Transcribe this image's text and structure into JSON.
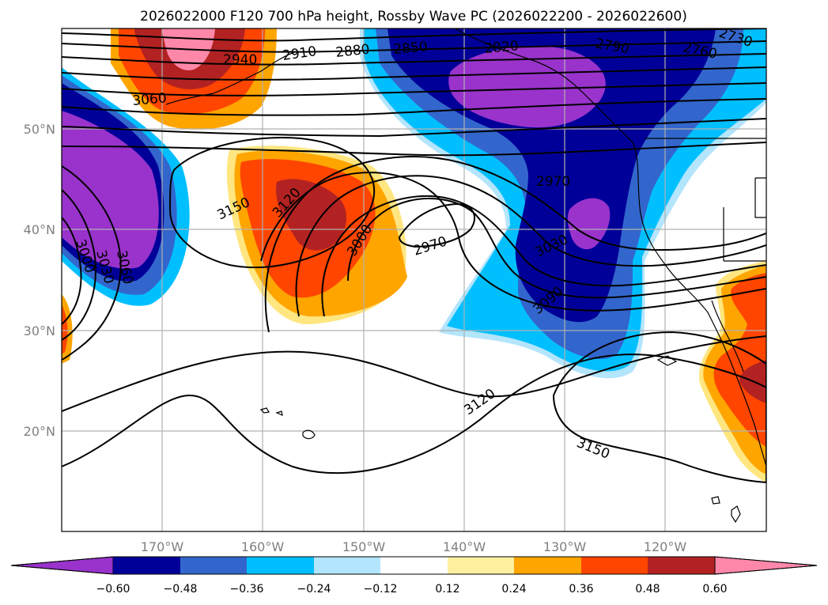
{
  "title": "2026022000 F120 700 hPa height, Rossby Wave PC (2026022200 - 2026022600)",
  "axes": {
    "lat_ticks": [
      "50°N",
      "40°N",
      "30°N",
      "20°N"
    ],
    "lon_ticks": [
      "170°W",
      "160°W",
      "150°W",
      "140°W",
      "130°W",
      "120°W"
    ]
  },
  "colorbar": {
    "colors": [
      "#9933cc",
      "#000099",
      "#3366cc",
      "#00bfff",
      "#b3e5fc",
      "#ffffff",
      "#fff0a0",
      "#ffa500",
      "#ff4500",
      "#b22222",
      "#ff88aa"
    ],
    "ticks": [
      "−0.60",
      "−0.48",
      "−0.36",
      "−0.24",
      "−0.12",
      "0.12",
      "0.24",
      "0.36",
      "0.48",
      "0.60"
    ]
  },
  "contour_labels": [
    "3060",
    "2940",
    "2910",
    "2880",
    "2850",
    "2820",
    "2790",
    "2760",
    "2730",
    "3150",
    "3120",
    "3000",
    "2970",
    "2970",
    "3030",
    "3090",
    "3000",
    "3030",
    "3060",
    "3120",
    "3150"
  ],
  "chart_data": {
    "type": "map",
    "title": "2026022000 F120 700 hPa height, Rossby Wave PC (2026022200 - 2026022600)",
    "field": "700 hPa geopotential height (contours, m) with Rossby Wave PC (shaded)",
    "extent": {
      "lon": [
        -180,
        -110
      ],
      "lat": [
        10,
        60
      ]
    },
    "contour_interval": 30,
    "shading_levels": [
      -0.6,
      -0.48,
      -0.36,
      -0.24,
      -0.12,
      0.12,
      0.24,
      0.36,
      0.48,
      0.6
    ],
    "features": [
      {
        "name": "ridge",
        "sign": "positive",
        "center_lon": -154,
        "center_lat": 42
      },
      {
        "name": "trough",
        "sign": "negative",
        "center_lon": -126,
        "center_lat": 55
      },
      {
        "name": "trough",
        "sign": "negative",
        "center_lon": -177,
        "center_lat": 43
      },
      {
        "name": "cutoff low",
        "label": "2970",
        "center_lon": -147,
        "center_lat": 39
      }
    ]
  }
}
